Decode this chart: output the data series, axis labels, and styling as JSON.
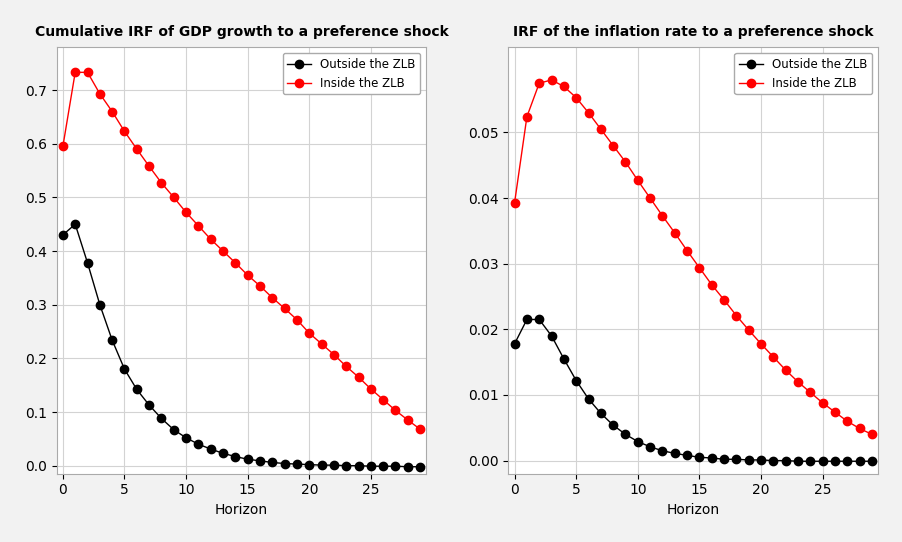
{
  "title_left": "Cumulative IRF of GDP growth to a preference shock",
  "title_right": "IRF of the inflation rate to a preference shock",
  "xlabel": "Horizon",
  "legend_outside": "Outside the ZLB",
  "legend_inside": "Inside the ZLB",
  "color_outside": "#000000",
  "color_inside": "#ff0000",
  "gdp_outside_x": [
    0,
    1,
    2,
    3,
    4,
    5,
    6,
    7,
    8,
    9,
    10,
    11,
    12,
    13,
    14,
    15,
    16,
    17,
    18,
    19,
    20,
    21,
    22,
    23,
    24,
    25,
    26,
    27,
    28,
    29
  ],
  "gdp_outside_y": [
    0.43,
    0.45,
    0.378,
    0.3,
    0.234,
    0.18,
    0.142,
    0.113,
    0.088,
    0.067,
    0.052,
    0.04,
    0.031,
    0.023,
    0.017,
    0.012,
    0.009,
    0.006,
    0.004,
    0.003,
    0.002,
    0.001,
    0.001,
    0.0,
    0.0,
    -0.001,
    -0.001,
    -0.001,
    -0.002,
    -0.002
  ],
  "gdp_inside_x": [
    0,
    1,
    2,
    3,
    4,
    5,
    6,
    7,
    8,
    9,
    10,
    11,
    12,
    13,
    14,
    15,
    16,
    17,
    18,
    19,
    20,
    21,
    22,
    23,
    24,
    25,
    26,
    27,
    28,
    29
  ],
  "gdp_inside_y": [
    0.595,
    0.733,
    0.733,
    0.693,
    0.66,
    0.623,
    0.59,
    0.558,
    0.527,
    0.5,
    0.472,
    0.447,
    0.422,
    0.4,
    0.378,
    0.355,
    0.335,
    0.313,
    0.293,
    0.272,
    0.247,
    0.227,
    0.207,
    0.185,
    0.165,
    0.143,
    0.123,
    0.103,
    0.085,
    0.068
  ],
  "inf_outside_x": [
    0,
    1,
    2,
    3,
    4,
    5,
    6,
    7,
    8,
    9,
    10,
    11,
    12,
    13,
    14,
    15,
    16,
    17,
    18,
    19,
    20,
    21,
    22,
    23,
    24,
    25,
    26,
    27,
    28,
    29
  ],
  "inf_outside_y": [
    0.0178,
    0.0215,
    0.0215,
    0.019,
    0.0155,
    0.0122,
    0.0094,
    0.0072,
    0.0054,
    0.004,
    0.0029,
    0.0021,
    0.0015,
    0.0011,
    0.0008,
    0.0005,
    0.0004,
    0.0002,
    0.0002,
    0.0001,
    0.0001,
    0.0,
    0.0,
    -0.0001,
    -0.0001,
    -0.0001,
    -0.0001,
    -0.0001,
    -0.0001,
    -0.0001
  ],
  "inf_inside_x": [
    0,
    1,
    2,
    3,
    4,
    5,
    6,
    7,
    8,
    9,
    10,
    11,
    12,
    13,
    14,
    15,
    16,
    17,
    18,
    19,
    20,
    21,
    22,
    23,
    24,
    25,
    26,
    27,
    28,
    29
  ],
  "inf_inside_y": [
    0.0393,
    0.0524,
    0.0575,
    0.058,
    0.057,
    0.0553,
    0.053,
    0.0505,
    0.048,
    0.0455,
    0.0427,
    0.04,
    0.0373,
    0.0347,
    0.032,
    0.0294,
    0.0268,
    0.0245,
    0.0221,
    0.0199,
    0.0178,
    0.0158,
    0.0138,
    0.012,
    0.0104,
    0.0088,
    0.0074,
    0.006,
    0.0049,
    0.004
  ],
  "gdp_ylim": [
    -0.015,
    0.78
  ],
  "inf_ylim": [
    -0.002,
    0.063
  ],
  "xlim": [
    -0.5,
    29.5
  ],
  "figure_bg": "#f2f2f2",
  "axes_bg": "#ffffff",
  "grid_color": "#d3d3d3",
  "marker": "o",
  "markersize": 6,
  "linewidth": 1.0
}
